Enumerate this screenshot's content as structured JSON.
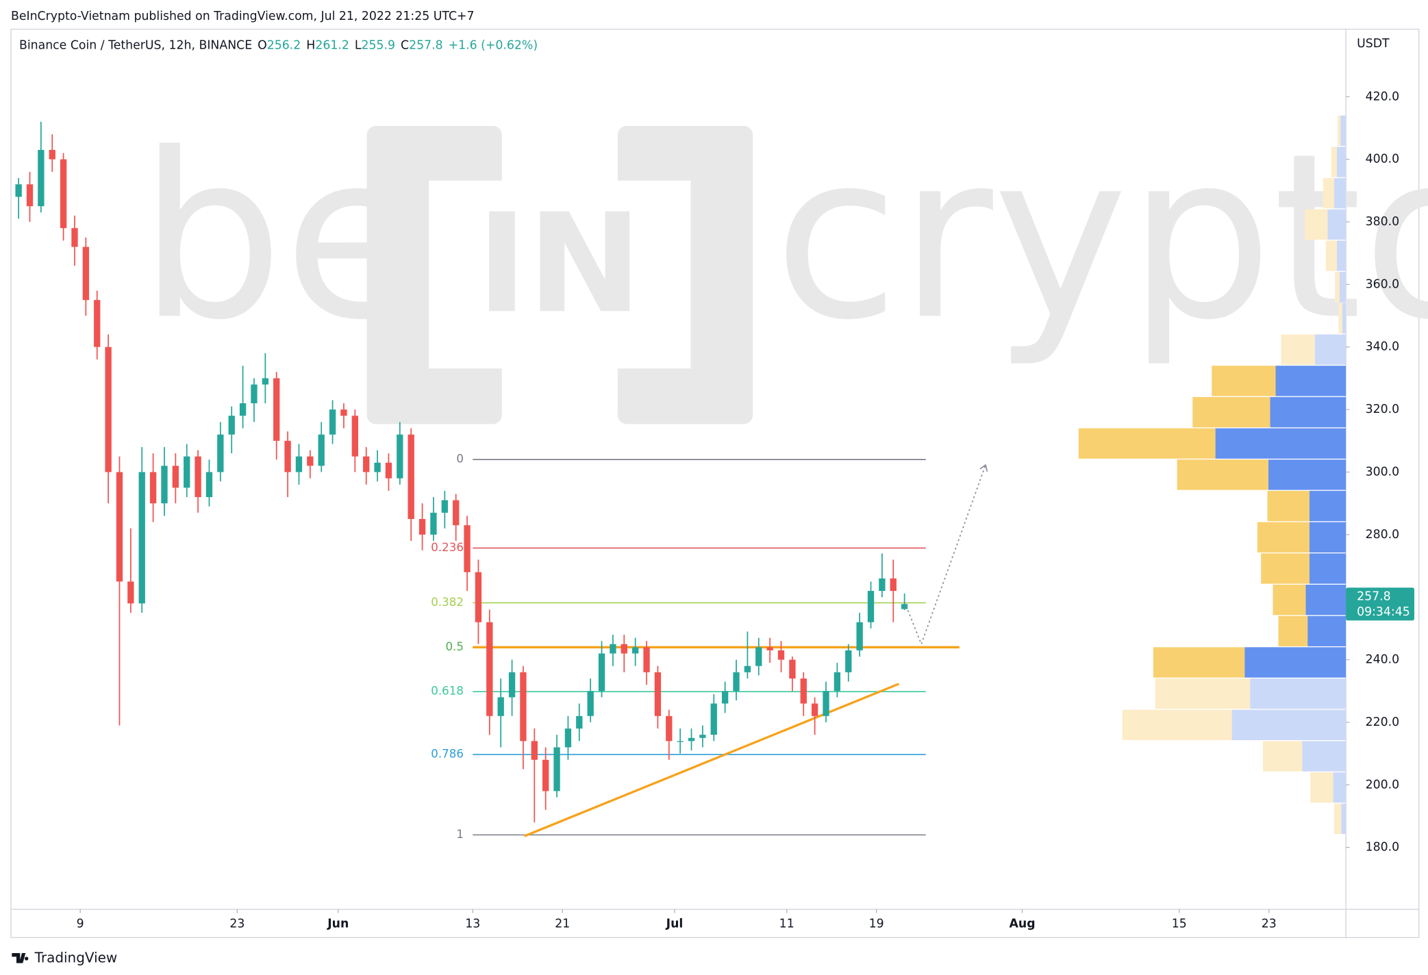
{
  "header": {
    "published": "BeInCrypto-Vietnam published on TradingView.com, Jul 21, 2022 21:25 UTC+7"
  },
  "footer": {
    "brand": "TradingView"
  },
  "chart_data": {
    "type": "candlestick",
    "title": "Binance Coin / TetherUS, 12h, BINANCE",
    "ohlc_labels": [
      "O",
      "H",
      "L",
      "C"
    ],
    "change_label": "+1.6 (+0.62%)",
    "countdown": "09:34:45",
    "y_axis_label": "USDT",
    "watermark": [
      "be",
      "IN",
      "crypto"
    ],
    "up_color": "#26a69a",
    "down_color": "#ef5350",
    "x": [
      3.5,
      4.5,
      5.5,
      6.5,
      7.5,
      8.5,
      9.5,
      10.5,
      11.5,
      12.5,
      13.5,
      14.5,
      15.5,
      16.5,
      17.5,
      18.5,
      19.5,
      20.5,
      21.5,
      22.5,
      23.5,
      24.5,
      25.5,
      26.5,
      27.5,
      28.5,
      29.5,
      30.5,
      31.5,
      32.5,
      33.5,
      34.5,
      35.5,
      36.5,
      37.5,
      38.5,
      39.5,
      40.5,
      41.5,
      42.5,
      43.5,
      44.5,
      45.5,
      46.5,
      47.5,
      48.5,
      49.5,
      50.5,
      51.5,
      52.5,
      53.5,
      54.5,
      55.5,
      56.5,
      57.5,
      58.5,
      59.5,
      60.5,
      61.5,
      62.5,
      63.5,
      64.5,
      65.5,
      66.5,
      67.5,
      68.5,
      69.5,
      70.5,
      71.5,
      72.5,
      73.5,
      74.5,
      75.5,
      76.5,
      77.5,
      78.5,
      79.5,
      80.5,
      81.5,
      82.5
    ],
    "candles": [
      [
        388,
        394,
        381,
        392
      ],
      [
        392,
        396,
        380,
        385
      ],
      [
        385,
        412,
        383,
        403
      ],
      [
        403,
        408,
        396,
        400
      ],
      [
        400,
        402,
        374,
        378
      ],
      [
        378,
        382,
        366,
        372
      ],
      [
        372,
        375,
        350,
        355
      ],
      [
        355,
        358,
        336,
        340
      ],
      [
        340,
        344,
        290,
        300
      ],
      [
        300,
        305,
        219,
        265
      ],
      [
        265,
        282,
        255,
        258
      ],
      [
        258,
        308,
        255,
        300
      ],
      [
        300,
        306,
        284,
        290
      ],
      [
        290,
        308,
        286,
        302
      ],
      [
        302,
        306,
        290,
        295
      ],
      [
        295,
        309,
        292,
        305
      ],
      [
        305,
        307,
        287,
        292
      ],
      [
        292,
        304,
        289,
        300
      ],
      [
        300,
        316,
        297,
        312
      ],
      [
        312,
        321,
        306,
        318
      ],
      [
        318,
        334,
        314,
        322
      ],
      [
        322,
        330,
        316,
        328
      ],
      [
        328,
        338,
        322,
        330
      ],
      [
        330,
        332,
        304,
        310
      ],
      [
        310,
        313,
        292,
        300
      ],
      [
        300,
        309,
        296,
        305
      ],
      [
        305,
        307,
        298,
        302
      ],
      [
        302,
        316,
        300,
        312
      ],
      [
        312,
        323,
        309,
        320
      ],
      [
        320,
        322,
        314,
        318
      ],
      [
        318,
        320,
        300,
        305
      ],
      [
        305,
        308,
        296,
        300
      ],
      [
        300,
        307,
        297,
        303
      ],
      [
        303,
        306,
        294,
        298
      ],
      [
        298,
        316,
        296,
        312
      ],
      [
        312,
        314,
        278,
        285
      ],
      [
        285,
        290,
        275,
        280
      ],
      [
        280,
        292,
        278,
        287
      ],
      [
        287,
        294,
        282,
        291
      ],
      [
        291,
        293,
        278,
        283
      ],
      [
        283,
        286,
        262,
        268
      ],
      [
        268,
        272,
        245,
        252
      ],
      [
        252,
        256,
        216,
        222
      ],
      [
        222,
        234,
        212,
        228
      ],
      [
        228,
        240,
        222,
        236
      ],
      [
        236,
        238,
        205,
        214
      ],
      [
        214,
        218,
        188,
        208
      ],
      [
        208,
        212,
        192,
        198
      ],
      [
        198,
        216,
        196,
        212
      ],
      [
        212,
        222,
        208,
        218
      ],
      [
        218,
        226,
        214,
        222
      ],
      [
        222,
        234,
        220,
        230
      ],
      [
        230,
        246,
        228,
        242
      ],
      [
        242,
        248,
        238,
        245
      ],
      [
        245,
        248,
        236,
        242
      ],
      [
        242,
        247,
        238,
        244
      ],
      [
        244,
        246,
        232,
        236
      ],
      [
        236,
        238,
        218,
        222
      ],
      [
        222,
        224,
        208,
        214
      ],
      [
        214,
        218,
        210,
        214
      ],
      [
        214,
        218,
        211,
        215
      ],
      [
        215,
        219,
        212,
        216
      ],
      [
        216,
        229,
        214,
        226
      ],
      [
        226,
        233,
        223,
        230
      ],
      [
        230,
        240,
        227,
        236
      ],
      [
        236,
        249,
        234,
        238
      ],
      [
        238,
        247,
        235,
        244
      ],
      [
        244,
        247,
        239,
        243
      ],
      [
        243,
        246,
        236,
        240
      ],
      [
        240,
        241,
        230,
        234
      ],
      [
        234,
        236,
        222,
        226
      ],
      [
        226,
        228,
        216,
        222
      ],
      [
        222,
        233,
        220,
        230
      ],
      [
        230,
        239,
        228,
        236
      ],
      [
        236,
        245,
        233,
        243
      ],
      [
        243,
        255,
        241,
        252
      ],
      [
        252,
        265,
        250,
        262
      ],
      [
        262,
        274,
        260,
        266
      ],
      [
        266,
        272,
        252,
        262
      ],
      [
        256.2,
        261.2,
        255.9,
        257.8
      ]
    ],
    "xlim": [
      2.82,
      121.86
    ],
    "xticks": [
      9,
      23,
      {
        "value": 32,
        "label": "Jun"
      },
      {
        "value": 44,
        "label": "13"
      },
      {
        "value": 52,
        "label": "21"
      },
      {
        "value": 62,
        "label": "Jul"
      },
      {
        "value": 72,
        "label": "11"
      },
      {
        "value": 80,
        "label": "19"
      },
      {
        "value": 93,
        "label": "Aug"
      },
      {
        "value": 107,
        "label": "15"
      },
      {
        "value": 115,
        "label": "23"
      }
    ],
    "ylim": [
      160.2,
      441.6
    ],
    "yticks": [
      {
        "value": 180,
        "label": "180.0"
      },
      {
        "value": 200,
        "label": "200.0"
      },
      {
        "value": 220,
        "label": "220.0"
      },
      {
        "value": 240,
        "label": "240.0"
      },
      {
        "value": 260,
        "label": "260.0"
      },
      {
        "value": 280,
        "label": "280.0"
      },
      {
        "value": 300,
        "label": "300.0"
      },
      {
        "value": 320,
        "label": "320.0"
      },
      {
        "value": 340,
        "label": "340.0"
      },
      {
        "value": 360,
        "label": "360.0"
      },
      {
        "value": 380,
        "label": "380.0"
      },
      {
        "value": 400,
        "label": "400.0"
      },
      {
        "value": 420,
        "label": "420.0"
      }
    ],
    "fib": {
      "levels": [
        0,
        0.236,
        0.382,
        0.5,
        0.618,
        0.786,
        1
      ],
      "prices": [
        304,
        275.7,
        258.2,
        244,
        229.8,
        209.7,
        184
      ],
      "colors": [
        "#787b86",
        "#e0575b",
        "#a3cf4f",
        "#4caf50",
        "#3cc89a",
        "#2d9fd9",
        "#787b86"
      ],
      "x": [
        44,
        84.4
      ]
    },
    "trendline": {
      "x": [
        48.6,
        82
      ],
      "y": [
        183.6,
        232.3
      ],
      "color": "#f7a21b"
    },
    "support_line": {
      "x": [
        44,
        87.4
      ],
      "y": [
        244,
        244
      ],
      "color": "#f7a21b"
    },
    "projection": {
      "x": [
        82.5,
        84.0,
        89.7
      ],
      "y": [
        258.5,
        245,
        302
      ],
      "color": "#8a8d96"
    },
    "volume_profile": {
      "bins": [
        184,
        194,
        204,
        214,
        224,
        234,
        244,
        254,
        264,
        274,
        284,
        294,
        304,
        314,
        324,
        334,
        344,
        354,
        364,
        374,
        384,
        394,
        404,
        414
      ],
      "up": [
        5,
        14,
        48,
        125,
        105,
        111,
        42,
        44,
        40,
        40,
        40,
        85,
        143,
        83,
        77,
        34,
        4,
        7,
        10,
        20,
        13,
        10,
        6
      ],
      "down": [
        8,
        25,
        43,
        120,
        104,
        100,
        32,
        36,
        53,
        57,
        46,
        100,
        150,
        85,
        70,
        37,
        4,
        5,
        12,
        25,
        12,
        6,
        3
      ],
      "value_area": [
        234,
        334
      ],
      "up_color": "#6391ef",
      "down_color": "#f9d06f",
      "up_color_outside": "#cbd9f8",
      "down_color_outside": "#fdecc8"
    }
  }
}
